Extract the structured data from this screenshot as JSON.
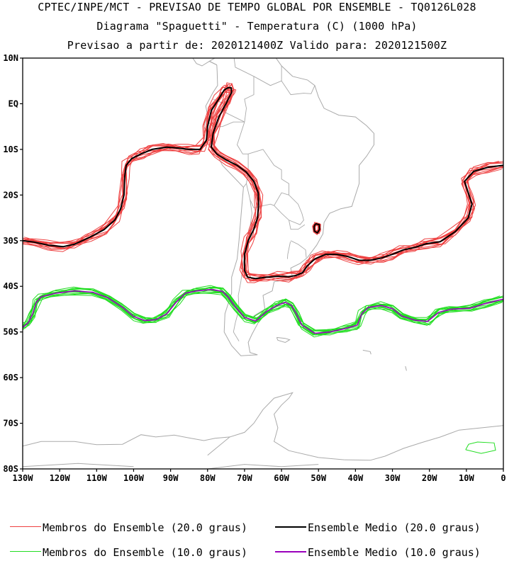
{
  "header": {
    "line1": "CPTEC/INPE/MCT - PREVISAO DE TEMPO GLOBAL POR ENSEMBLE - TQ0126L028",
    "line2": "Diagrama \"Spaguetti\" - Temperatura (C) (1000 hPa)",
    "line3": "Previsao a partir de: 2020121400Z  Valido para: 2020121500Z"
  },
  "map": {
    "lon_range": [
      -130,
      0
    ],
    "lat_range": [
      -80,
      10
    ],
    "lat_ticks": [
      {
        "value": 10,
        "label": "10N"
      },
      {
        "value": 0,
        "label": "EQ"
      },
      {
        "value": -10,
        "label": "10S"
      },
      {
        "value": -20,
        "label": "20S"
      },
      {
        "value": -30,
        "label": "30S"
      },
      {
        "value": -40,
        "label": "40S"
      },
      {
        "value": -50,
        "label": "50S"
      },
      {
        "value": -60,
        "label": "60S"
      },
      {
        "value": -70,
        "label": "70S"
      },
      {
        "value": -80,
        "label": "80S"
      }
    ],
    "lon_ticks": [
      {
        "value": -130,
        "label": "130W"
      },
      {
        "value": -120,
        "label": "120W"
      },
      {
        "value": -110,
        "label": "110W"
      },
      {
        "value": -100,
        "label": "100W"
      },
      {
        "value": -90,
        "label": "90W"
      },
      {
        "value": -80,
        "label": "80W"
      },
      {
        "value": -70,
        "label": "70W"
      },
      {
        "value": -60,
        "label": "60W"
      },
      {
        "value": -50,
        "label": "50W"
      },
      {
        "value": -40,
        "label": "40W"
      },
      {
        "value": -30,
        "label": "30W"
      },
      {
        "value": -20,
        "label": "20W"
      },
      {
        "value": -10,
        "label": "10W"
      },
      {
        "value": 0,
        "label": "0"
      }
    ],
    "colors": {
      "members_20": "#ee4040",
      "mean_20": "#000000",
      "members_10": "#22dd22",
      "mean_10": "#9900bb",
      "coast": "#aaaaaa"
    }
  },
  "contours": {
    "isotherm_20_mean": [
      [
        -130,
        -30.0
      ],
      [
        -127,
        -30.3
      ],
      [
        -123,
        -31.0
      ],
      [
        -119,
        -31.3
      ],
      [
        -116,
        -30.8
      ],
      [
        -112,
        -29.3
      ],
      [
        -108,
        -27.6
      ],
      [
        -105,
        -25.4
      ],
      [
        -103.5,
        -23
      ],
      [
        -102.6,
        -20
      ],
      [
        -102.4,
        -16
      ],
      [
        -102,
        -13.5
      ],
      [
        -100.5,
        -12
      ],
      [
        -98,
        -11
      ],
      [
        -95,
        -10
      ],
      [
        -91,
        -9.5
      ],
      [
        -88,
        -9.7
      ],
      [
        -85,
        -10
      ],
      [
        -82,
        -10
      ],
      [
        -80.3,
        -8
      ],
      [
        -80,
        -5
      ],
      [
        -79,
        -1.5
      ],
      [
        -77,
        1
      ],
      [
        -75.5,
        3
      ],
      [
        -74.5,
        3.5
      ],
      [
        -73.6,
        3.5
      ],
      [
        -73.5,
        2.5
      ],
      [
        -75,
        0
      ],
      [
        -77,
        -3
      ],
      [
        -78.5,
        -6.5
      ],
      [
        -79,
        -9.5
      ],
      [
        -77.5,
        -11
      ],
      [
        -75,
        -12.3
      ],
      [
        -72,
        -13.5
      ],
      [
        -69.5,
        -15
      ],
      [
        -67.5,
        -17
      ],
      [
        -66.3,
        -19.5
      ],
      [
        -66.2,
        -22
      ],
      [
        -66.5,
        -25
      ],
      [
        -67.5,
        -27.5
      ],
      [
        -69,
        -30
      ],
      [
        -70,
        -33
      ],
      [
        -70,
        -36.5
      ],
      [
        -69.2,
        -38
      ],
      [
        -67,
        -38.3
      ],
      [
        -64,
        -38
      ],
      [
        -61,
        -37.8
      ],
      [
        -58,
        -37.9
      ],
      [
        -56,
        -37.6
      ],
      [
        -54.3,
        -37
      ],
      [
        -53,
        -35.5
      ],
      [
        -51,
        -34
      ],
      [
        -48,
        -33
      ],
      [
        -45,
        -33
      ],
      [
        -42,
        -33.5
      ],
      [
        -39,
        -34.3
      ],
      [
        -36,
        -34.3
      ],
      [
        -33,
        -33.8
      ],
      [
        -30,
        -33
      ],
      [
        -27,
        -32
      ],
      [
        -24,
        -31.5
      ],
      [
        -21,
        -30.7
      ],
      [
        -17,
        -30.2
      ],
      [
        -13,
        -28
      ],
      [
        -9.5,
        -25
      ],
      [
        -8.5,
        -22
      ],
      [
        -9.5,
        -19.5
      ],
      [
        -10.5,
        -17
      ],
      [
        -8,
        -14.8
      ],
      [
        -4,
        -13.9
      ],
      [
        0,
        -13.5
      ]
    ],
    "isotherm_20_island": [
      [
        -50.8,
        -26.3
      ],
      [
        -49.8,
        -26.5
      ],
      [
        -49.7,
        -27.5
      ],
      [
        -50.3,
        -28.3
      ],
      [
        -51.1,
        -27.9
      ],
      [
        -51.2,
        -26.9
      ],
      [
        -50.8,
        -26.3
      ]
    ],
    "isotherm_10_mean": [
      [
        -130,
        -49.0
      ],
      [
        -128.5,
        -48
      ],
      [
        -127.3,
        -46
      ],
      [
        -126.3,
        -43.5
      ],
      [
        -125,
        -42.3
      ],
      [
        -121,
        -41.5
      ],
      [
        -116,
        -41
      ],
      [
        -111,
        -41.3
      ],
      [
        -107,
        -42.5
      ],
      [
        -103,
        -44.6
      ],
      [
        -100,
        -46.6
      ],
      [
        -97,
        -47.5
      ],
      [
        -94,
        -47.3
      ],
      [
        -91,
        -46
      ],
      [
        -88.5,
        -43.5
      ],
      [
        -86,
        -41.5
      ],
      [
        -83,
        -41
      ],
      [
        -79,
        -40.7
      ],
      [
        -76,
        -41.1
      ],
      [
        -74.5,
        -42.3
      ],
      [
        -72.5,
        -44.5
      ],
      [
        -70,
        -46.8
      ],
      [
        -67,
        -47.6
      ],
      [
        -64,
        -45.5
      ],
      [
        -61.5,
        -44.3
      ],
      [
        -59,
        -43.5
      ],
      [
        -57.3,
        -44.2
      ],
      [
        -56,
        -46
      ],
      [
        -54.5,
        -48.5
      ],
      [
        -51,
        -50.3
      ],
      [
        -47,
        -50
      ],
      [
        -43,
        -49.3
      ],
      [
        -39.5,
        -48.5
      ],
      [
        -38.3,
        -46
      ],
      [
        -36.5,
        -44.6
      ],
      [
        -33,
        -44.2
      ],
      [
        -30,
        -44.9
      ],
      [
        -27.5,
        -46.5
      ],
      [
        -24,
        -47.4
      ],
      [
        -20.5,
        -47.7
      ],
      [
        -17.5,
        -45.7
      ],
      [
        -14,
        -45
      ],
      [
        -9,
        -44.8
      ],
      [
        -5,
        -43.8
      ],
      [
        0,
        -42.8
      ]
    ],
    "isotherm_10_spot": [
      [
        -10.2,
        -75.8
      ],
      [
        -9.4,
        -74.6
      ],
      [
        -7,
        -74.1
      ],
      [
        -2.5,
        -74.3
      ],
      [
        -2.1,
        -75.9
      ],
      [
        -6,
        -76.6
      ],
      [
        -10.2,
        -75.8
      ]
    ]
  },
  "legend": {
    "members_20": "Membros do Ensemble (20.0 graus)",
    "mean_20": "Ensemble Medio (20.0 graus)",
    "members_10": "Membros do Ensemble (10.0 graus)",
    "mean_10": "Ensemble Medio (10.0 graus)"
  }
}
